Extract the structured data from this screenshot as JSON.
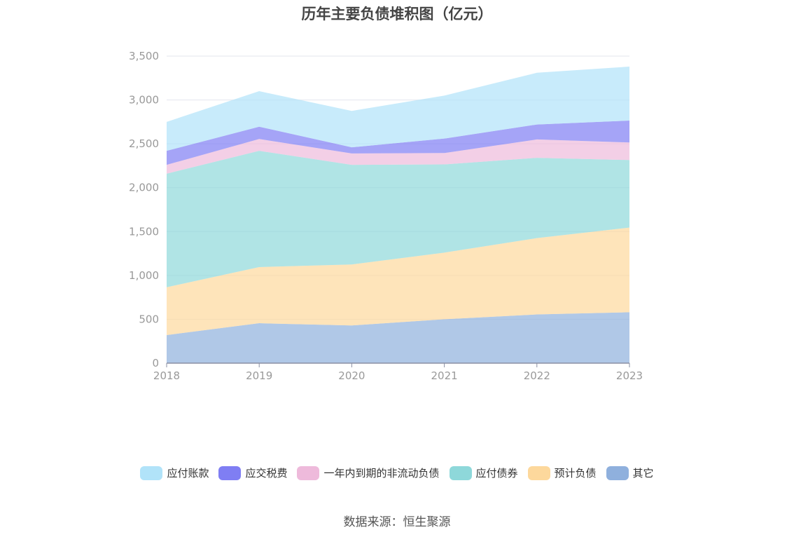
{
  "chart_data": {
    "type": "area",
    "stacked": true,
    "title": "历年主要负债堆积图（亿元）",
    "x": [
      "2018",
      "2019",
      "2020",
      "2021",
      "2022",
      "2023"
    ],
    "y_ticks": [
      "0",
      "500",
      "1,000",
      "1,500",
      "2,000",
      "2,500",
      "3,000",
      "3,500"
    ],
    "ylim": [
      0,
      3500
    ],
    "legend_position": "bottom",
    "series": [
      {
        "name": "其它",
        "color": "#8fb0dd",
        "values": [
          320,
          455,
          430,
          500,
          555,
          580
        ]
      },
      {
        "name": "预计负债",
        "color": "#fdd89c",
        "values": [
          545,
          640,
          695,
          760,
          870,
          965
        ]
      },
      {
        "name": "应付债券",
        "color": "#8ed8da",
        "values": [
          1295,
          1325,
          1135,
          1005,
          915,
          770
        ]
      },
      {
        "name": "一年内到期的非流动负债",
        "color": "#eebadb",
        "values": [
          100,
          135,
          130,
          130,
          210,
          200
        ]
      },
      {
        "name": "应交税费",
        "color": "#7f7ef3",
        "values": [
          160,
          140,
          70,
          165,
          170,
          250
        ]
      },
      {
        "name": "应付账款",
        "color": "#b1e3f9",
        "values": [
          330,
          405,
          415,
          490,
          590,
          615
        ]
      }
    ],
    "legend_order": [
      "应付账款",
      "应交税费",
      "一年内到期的非流动负债",
      "应付债券",
      "预计负债",
      "其它"
    ]
  },
  "source": "数据来源：恒生聚源"
}
